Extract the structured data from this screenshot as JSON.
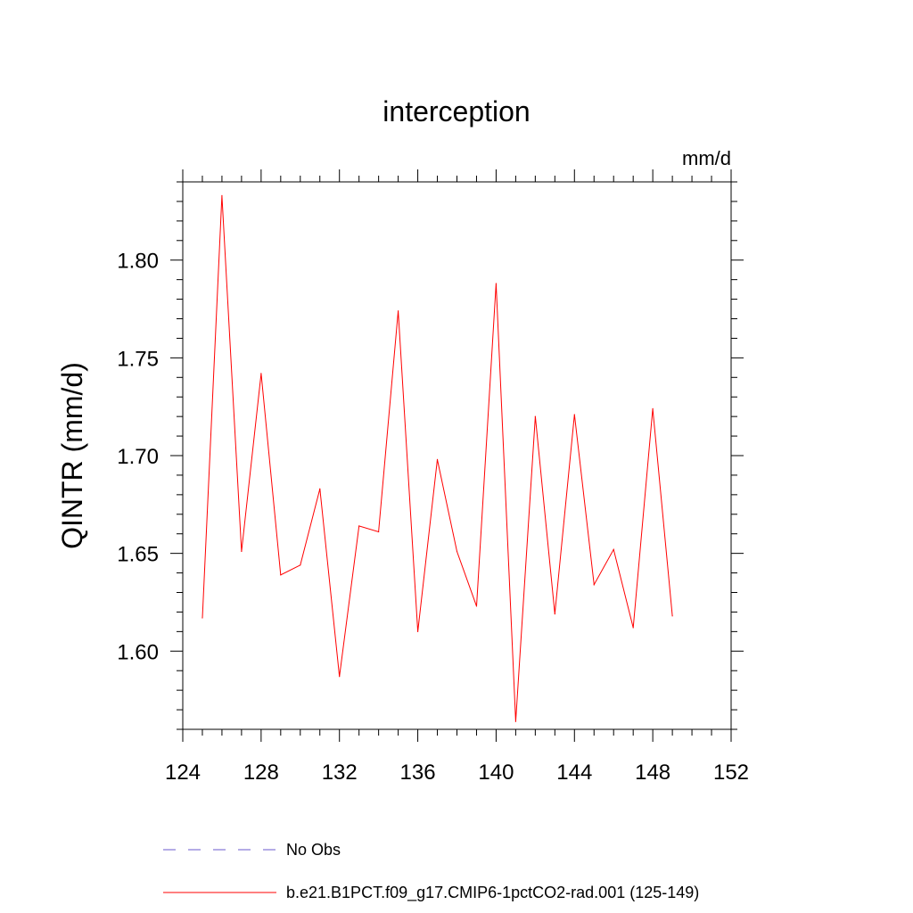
{
  "chart_data": {
    "type": "line",
    "title": "interception",
    "units_label": "mm/d",
    "ylabel": "QINTR  (mm/d)",
    "xlabel": "",
    "xlim": [
      124,
      152
    ],
    "ylim": [
      1.56,
      1.84
    ],
    "xticks": [
      124,
      128,
      132,
      136,
      140,
      144,
      148,
      152
    ],
    "yticks": [
      1.6,
      1.65,
      1.7,
      1.75,
      1.8
    ],
    "ytick_labels": [
      "1.60",
      "1.65",
      "1.70",
      "1.75",
      "1.80"
    ],
    "grid": false,
    "legend_position": "bottom",
    "legend": [
      {
        "label": "No Obs",
        "color": "#6a5acd",
        "style": "dashed"
      },
      {
        "label": "b.e21.B1PCT.f09_g17.CMIP6-1pctCO2-rad.001 (125-149)",
        "color": "#ff0000",
        "style": "solid"
      }
    ],
    "series": [
      {
        "name": "b.e21.B1PCT.f09_g17.CMIP6-1pctCO2-rad.001 (125-149)",
        "color": "#ff0000",
        "x": [
          125,
          126,
          127,
          128,
          129,
          130,
          131,
          132,
          133,
          134,
          135,
          136,
          137,
          138,
          139,
          140,
          141,
          142,
          143,
          144,
          145,
          146,
          147,
          148,
          149
        ],
        "y": [
          1.617,
          1.833,
          1.651,
          1.742,
          1.639,
          1.644,
          1.683,
          1.587,
          1.664,
          1.661,
          1.774,
          1.61,
          1.698,
          1.651,
          1.623,
          1.788,
          1.564,
          1.72,
          1.619,
          1.721,
          1.634,
          1.652,
          1.612,
          1.724,
          1.618
        ]
      }
    ]
  }
}
